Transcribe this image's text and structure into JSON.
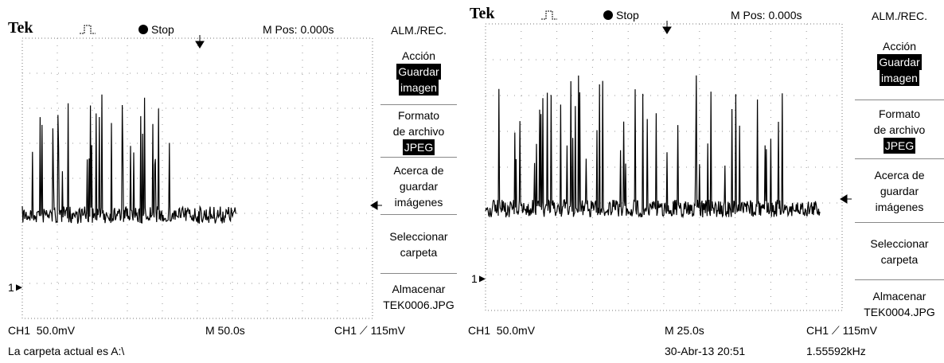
{
  "screens": [
    {
      "header": {
        "brand": "Tek",
        "status": "Stop",
        "mpos": "M Pos: 0.000s"
      },
      "ch_marker": "1",
      "menu": {
        "title": "ALM./REC.",
        "items": [
          {
            "lines": [
              "Acción"
            ],
            "highlight": [
              "Guardar",
              "imagen"
            ]
          },
          {
            "lines": [
              "Formato",
              "de archivo"
            ],
            "highlight": [
              "JPEG"
            ]
          },
          {
            "lines": [
              "Acerca de",
              "guardar",
              "imágenes"
            ]
          },
          {
            "lines": [
              "Seleccionar",
              "carpeta"
            ]
          },
          {
            "lines": [
              "Almacenar",
              "TEK0006.JPG"
            ]
          }
        ]
      },
      "footer": {
        "channel": "CH1  50.0mV",
        "timebase": "M 50.0s",
        "trigger": "CH1 ⟋ 115mV",
        "status": "La carpeta actual es A:\\"
      }
    },
    {
      "header": {
        "brand": "Tek",
        "status": "Stop",
        "mpos": "M Pos: 0.000s"
      },
      "ch_marker": "1",
      "menu": {
        "title": "ALM./REC.",
        "items": [
          {
            "lines": [
              "Acción"
            ],
            "highlight": [
              "Guardar",
              "imagen"
            ]
          },
          {
            "lines": [
              "Formato",
              "de archivo"
            ],
            "highlight": [
              "JPEG"
            ]
          },
          {
            "lines": [
              "Acerca de",
              "guardar",
              "imágenes"
            ]
          },
          {
            "lines": [
              "Seleccionar",
              "carpeta"
            ]
          },
          {
            "lines": [
              "Almacenar",
              "TEK0004.JPG"
            ]
          }
        ]
      },
      "footer": {
        "channel": "CH1  50.0mV",
        "timebase": "M 25.0s",
        "trigger": "CH1 ⟋ 115mV",
        "date": "30-Abr-13 20:51",
        "frequency": "1.55592kHz"
      }
    }
  ]
}
